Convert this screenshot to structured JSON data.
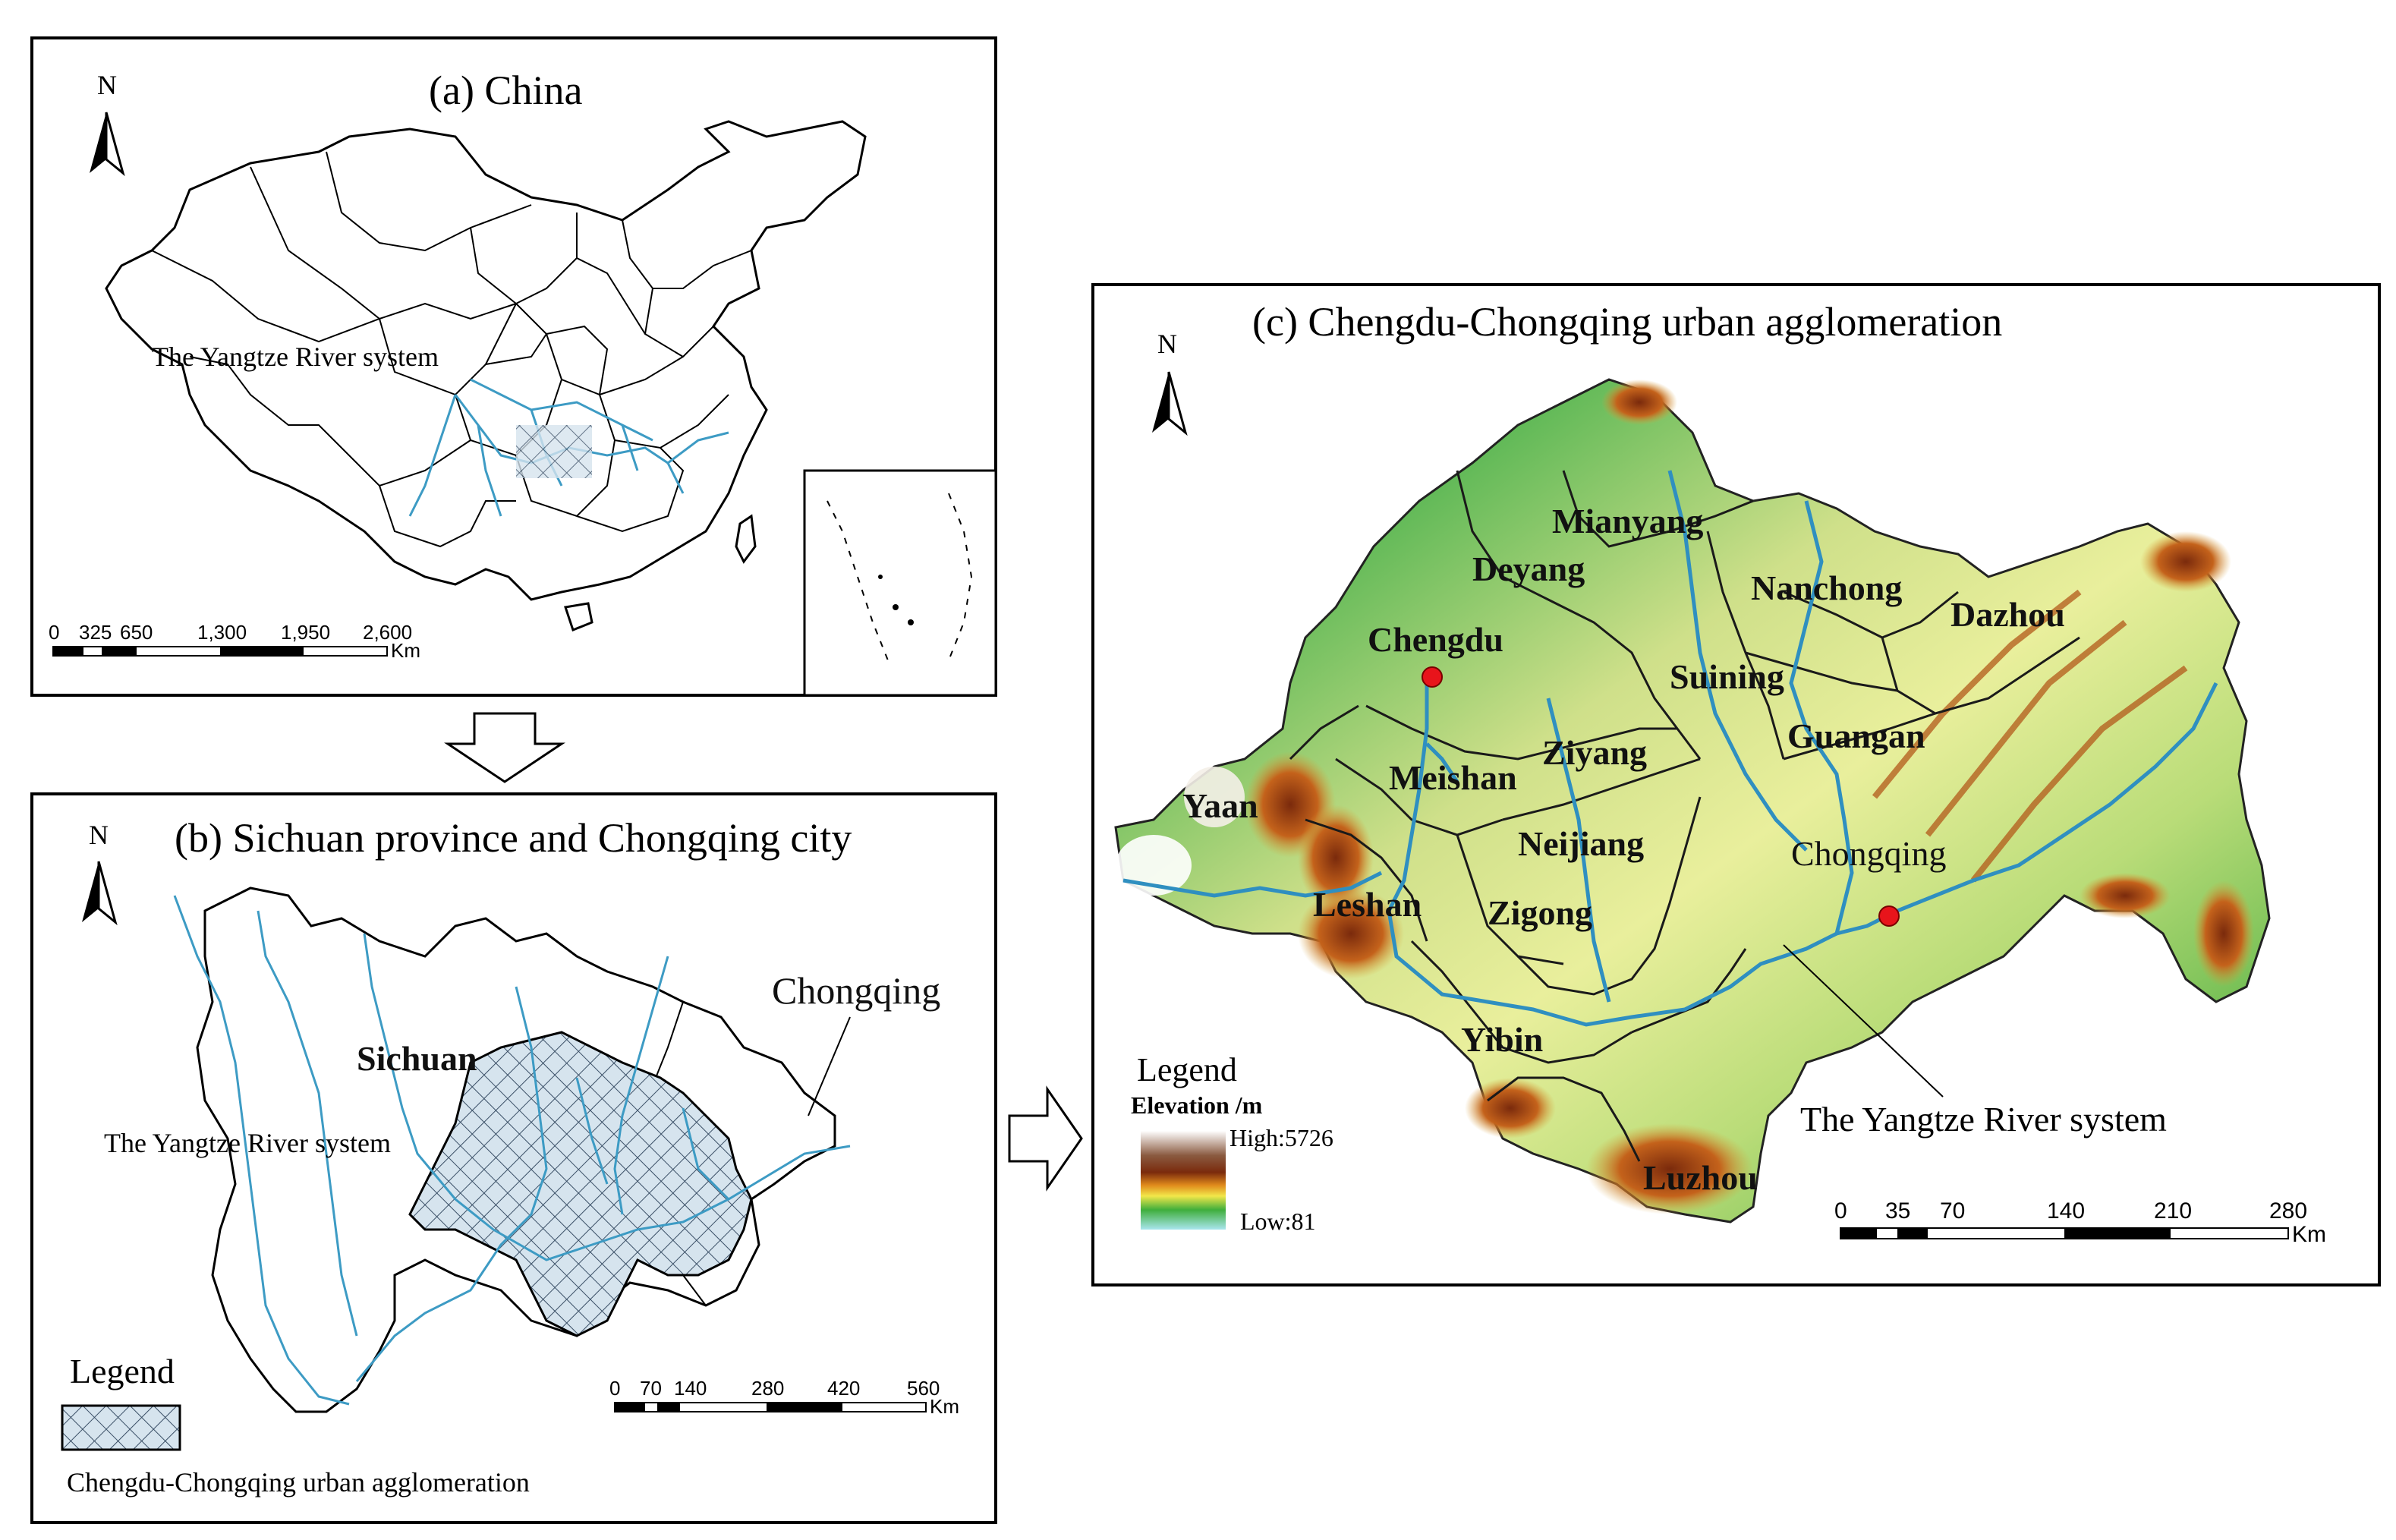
{
  "panels": {
    "a": {
      "title": "(a) China",
      "north": "N",
      "river_label": "The Yangtze River system",
      "scale": {
        "ticks": [
          "0",
          "325",
          "650",
          "1,300",
          "1,950",
          "2,600"
        ],
        "unit": "Km"
      }
    },
    "b": {
      "title": "(b) Sichuan province and Chongqing city",
      "north": "N",
      "region_labels": {
        "sichuan": "Sichuan",
        "chongqing": "Chongqing"
      },
      "river_label": "The Yangtze River system",
      "legend": {
        "title": "Legend",
        "item": "Chengdu-Chongqing urban agglomeration"
      },
      "scale": {
        "ticks": [
          "0",
          "70",
          "140",
          "280",
          "420",
          "560"
        ],
        "unit": "Km"
      }
    },
    "c": {
      "title": "(c) Chengdu-Chongqing urban agglomeration",
      "north": "N",
      "cities": {
        "mianyang": "Mianyang",
        "deyang": "Deyang",
        "nanchong": "Nanchong",
        "dazhou": "Dazhou",
        "chengdu": "Chengdu",
        "suining": "Suining",
        "guangan": "Guangan",
        "ziyang": "Ziyang",
        "meishan": "Meishan",
        "yaan": "Yaan",
        "neijiang": "Neijiang",
        "chongqing": "Chongqing",
        "leshan": "Leshan",
        "zigong": "Zigong",
        "yibin": "Yibin",
        "luzhou": "Luzhou"
      },
      "river_label": "The Yangtze River system",
      "legend": {
        "title": "Legend",
        "subtitle": "Elevation /m",
        "high": "High:5726",
        "low": "Low:81"
      },
      "scale": {
        "ticks": [
          "0",
          "35",
          "70",
          "140",
          "210",
          "280"
        ],
        "unit": "Km"
      }
    }
  },
  "colors": {
    "river": "#3d9bc4",
    "capital_dot": "#e8141b",
    "hatch_fill": "#cfe0ec",
    "elevation_high": "#ffffff",
    "elevation_brown": "#7a2a0c",
    "elevation_orange": "#e08a1c",
    "elevation_yellow": "#f2e74a",
    "elevation_green": "#3fae3c",
    "elevation_low": "#a9e6ee"
  }
}
